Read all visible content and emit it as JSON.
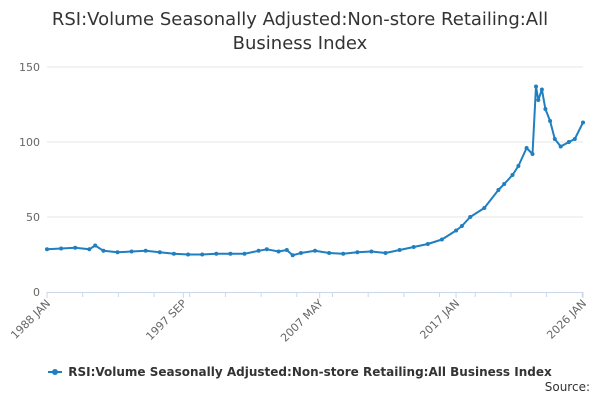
{
  "colors": {
    "series": "#1f7fbf",
    "grid": "#e6e6e6",
    "axis": "#ccd6eb",
    "tick_text": "#666666",
    "title_text": "#333333"
  },
  "source_label": "Source:",
  "chart_data": {
    "type": "line",
    "title": "RSI:Volume Seasonally Adjusted:Non-store Retailing:All Business Index",
    "xlabel": "",
    "ylabel": "",
    "ylim": [
      0,
      150
    ],
    "yticks": [
      0,
      50,
      100,
      150
    ],
    "xlim": [
      "1988-01",
      "2026-01"
    ],
    "xticks": [
      {
        "label": "1988 JAN",
        "x": "1988-01"
      },
      {
        "label": "1997 SEP",
        "x": "1997-09"
      },
      {
        "label": "2007 MAY",
        "x": "2007-05"
      },
      {
        "label": "2017 JAN",
        "x": "2017-01"
      },
      {
        "label": "2026 JAN",
        "x": "2026-01"
      }
    ],
    "grid": true,
    "legend": "bottom-center",
    "series": [
      {
        "name": "RSI:Volume Seasonally Adjusted:Non-store Retailing:All Business Index",
        "points": [
          [
            "1988-01",
            28.5
          ],
          [
            "1989-01",
            29.0
          ],
          [
            "1990-01",
            29.5
          ],
          [
            "1991-01",
            28.5
          ],
          [
            "1991-06",
            31.0
          ],
          [
            "1992-01",
            27.5
          ],
          [
            "1993-01",
            26.5
          ],
          [
            "1994-01",
            27.0
          ],
          [
            "1995-01",
            27.5
          ],
          [
            "1996-01",
            26.5
          ],
          [
            "1997-01",
            25.5
          ],
          [
            "1998-01",
            25.0
          ],
          [
            "1999-01",
            25.0
          ],
          [
            "2000-01",
            25.5
          ],
          [
            "2001-01",
            25.5
          ],
          [
            "2002-01",
            25.5
          ],
          [
            "2003-01",
            27.5
          ],
          [
            "2003-08",
            28.5
          ],
          [
            "2004-06",
            27.0
          ],
          [
            "2005-01",
            28.0
          ],
          [
            "2005-06",
            24.5
          ],
          [
            "2006-01",
            26.0
          ],
          [
            "2007-01",
            27.5
          ],
          [
            "2008-01",
            26.0
          ],
          [
            "2009-01",
            25.5
          ],
          [
            "2010-01",
            26.5
          ],
          [
            "2011-01",
            27.0
          ],
          [
            "2012-01",
            26.0
          ],
          [
            "2013-01",
            28.0
          ],
          [
            "2014-01",
            30.0
          ],
          [
            "2015-01",
            32.0
          ],
          [
            "2016-01",
            35.0
          ],
          [
            "2017-01",
            41.0
          ],
          [
            "2017-06",
            44.0
          ],
          [
            "2018-01",
            50.0
          ],
          [
            "2019-01",
            56.0
          ],
          [
            "2020-01",
            68.0
          ],
          [
            "2020-06",
            72.0
          ],
          [
            "2021-01",
            78.0
          ],
          [
            "2021-06",
            84.0
          ],
          [
            "2022-01",
            96.0
          ],
          [
            "2022-06",
            92.0
          ],
          [
            "2022-09",
            137.0
          ],
          [
            "2022-11",
            128.0
          ],
          [
            "2023-02",
            135.0
          ],
          [
            "2023-05",
            122.0
          ],
          [
            "2023-09",
            114.0
          ],
          [
            "2024-01",
            102.0
          ],
          [
            "2024-06",
            97.0
          ],
          [
            "2025-01",
            100.0
          ],
          [
            "2025-06",
            102.0
          ],
          [
            "2026-01",
            113.0
          ]
        ]
      }
    ]
  }
}
